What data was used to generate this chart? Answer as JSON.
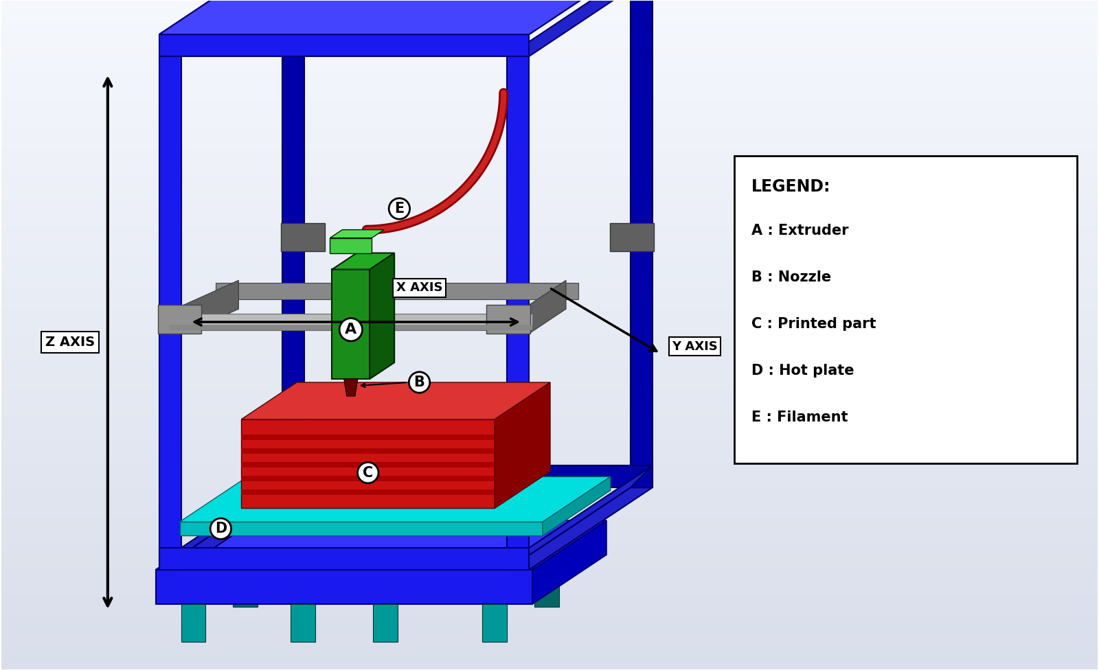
{
  "bg_color": "#c8cfd8",
  "bg_color2": "#e8eaf0",
  "frame_blue": "#1a1aee",
  "frame_dark": "#0000aa",
  "frame_side": "#2222cc",
  "rod_color": "#bbbbbb",
  "rod_dark": "#888888",
  "bracket_color": "#909090",
  "bracket_dark": "#606060",
  "bracket_light": "#b0b0b0",
  "extruder_front": "#1a8c1a",
  "extruder_side": "#0a5a0a",
  "extruder_top": "#22aa22",
  "extruder_cap": "#44cc44",
  "printed_front": "#cc1111",
  "printed_side": "#880000",
  "printed_top": "#dd3333",
  "hotplate_front": "#00bbbb",
  "hotplate_top": "#00dddd",
  "hotplate_side": "#009999",
  "base_front": "#1a1aee",
  "base_top": "#3333ff",
  "base_side": "#0000bb",
  "leg_color": "#009999",
  "leg_dark": "#006666",
  "filament_outer": "#880000",
  "filament_inner": "#cc2222",
  "label_circle_bg": "#ffffff",
  "legend_title": "LEGEND:",
  "legend_items": [
    "A : Extruder",
    "B : Nozzle",
    "C : Printed part",
    "D : Hot plate",
    "E : Filament"
  ],
  "z_axis_label": "Z AXIS",
  "x_axis_label": "X AXIS",
  "y_axis_label": "Y AXIS"
}
